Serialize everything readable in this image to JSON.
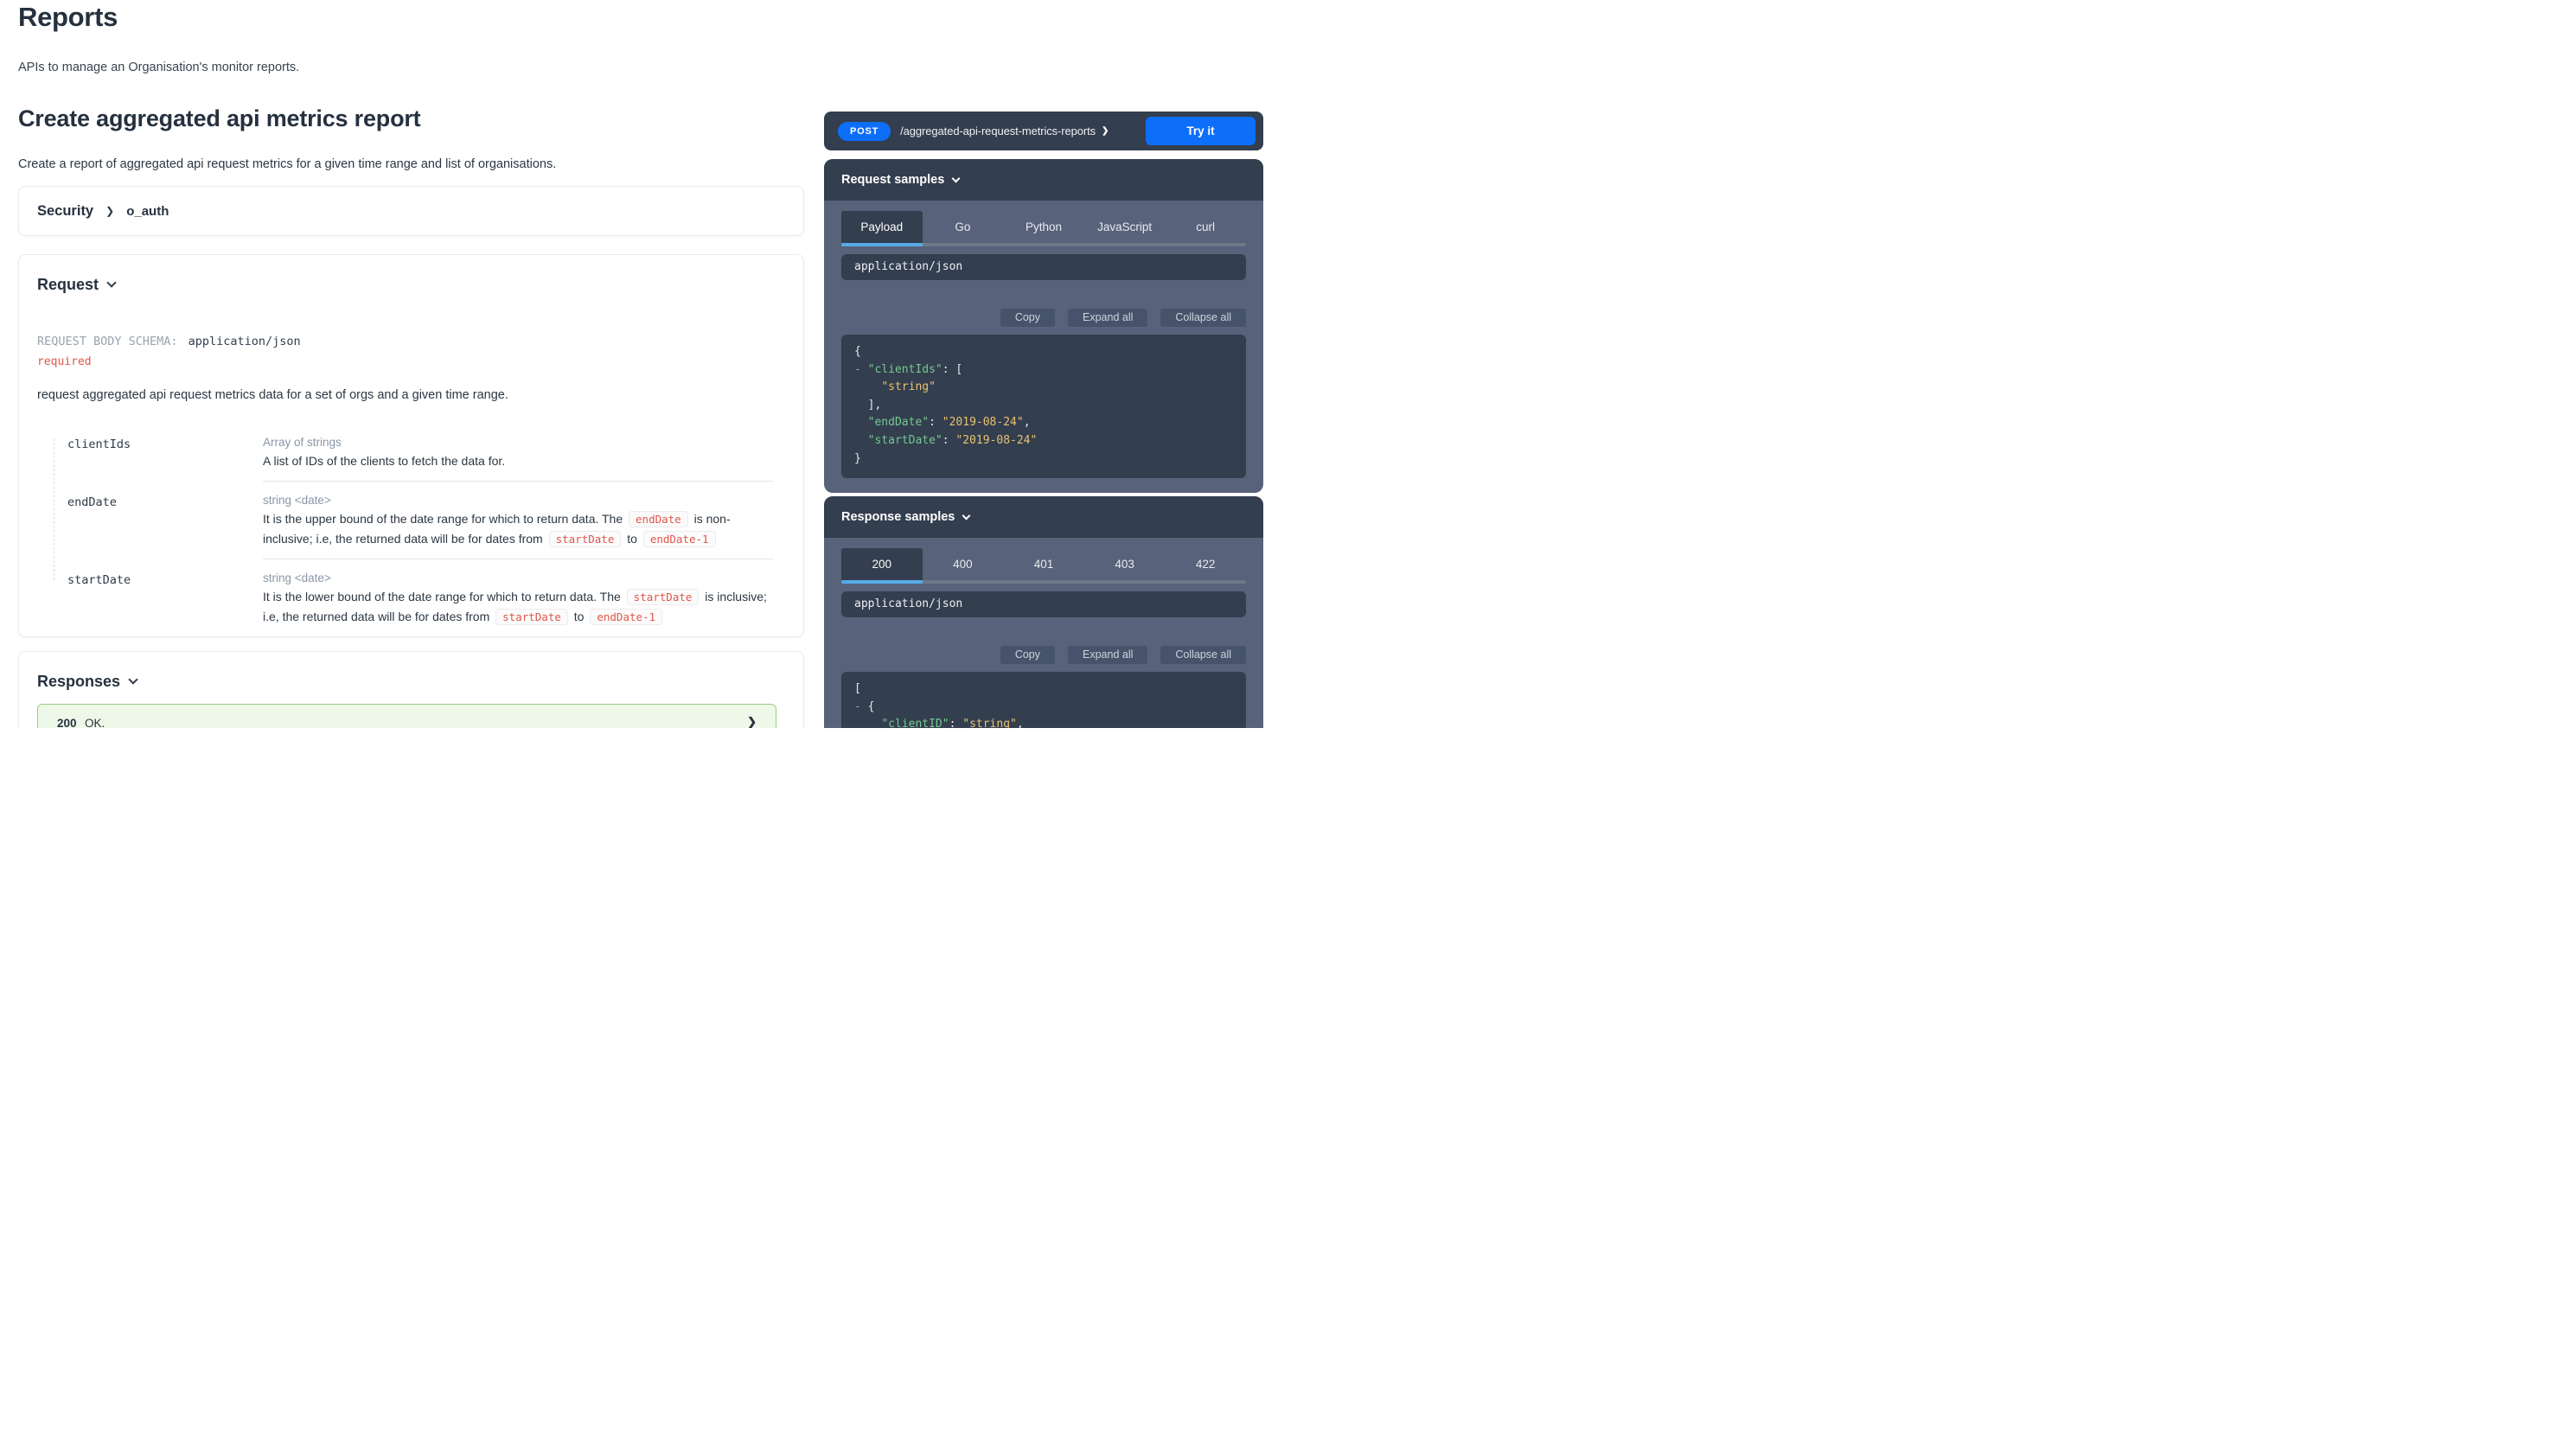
{
  "page": {
    "title": "Reports",
    "subtitle": "APIs to manage an Organisation's monitor reports."
  },
  "operation": {
    "title": "Create aggregated api metrics report",
    "description": "Create a report of aggregated api request metrics for a given time range and list of organisations."
  },
  "security": {
    "label": "Security",
    "value": "o_auth"
  },
  "request": {
    "section_label": "Request",
    "schema_label": "REQUEST BODY SCHEMA:",
    "content_type": "application/json",
    "required_label": "required",
    "description": "request aggregated api request metrics data for a set of orgs and a given time range.",
    "fields": [
      {
        "name": "clientIds",
        "type": "Array of strings",
        "desc": [
          {
            "t": "text",
            "v": "A list of IDs of the clients to fetch the data for."
          }
        ]
      },
      {
        "name": "endDate",
        "type": "string <date>",
        "desc": [
          {
            "t": "text",
            "v": "It is the upper bound of the date range for which to return data. The "
          },
          {
            "t": "code",
            "v": "endDate"
          },
          {
            "t": "text",
            "v": " is non-inclusive; i.e, the returned data will be for dates from "
          },
          {
            "t": "code",
            "v": "startDate"
          },
          {
            "t": "text",
            "v": " to "
          },
          {
            "t": "code",
            "v": "endDate-1"
          }
        ]
      },
      {
        "name": "startDate",
        "type": "string <date>",
        "desc": [
          {
            "t": "text",
            "v": "It is the lower bound of the date range for which to return data. The "
          },
          {
            "t": "code",
            "v": "startDate"
          },
          {
            "t": "text",
            "v": " is inclusive; i.e, the returned data will be for dates from "
          },
          {
            "t": "code",
            "v": "startDate"
          },
          {
            "t": "text",
            "v": " to "
          },
          {
            "t": "code",
            "v": "endDate-1"
          }
        ]
      }
    ]
  },
  "responses": {
    "section_label": "Responses",
    "items": [
      {
        "code": "200",
        "description": "OK."
      }
    ]
  },
  "endpoint": {
    "method": "POST",
    "path": "/aggregated-api-request-metrics-reports",
    "try_it_label": "Try it"
  },
  "sample_actions": {
    "copy": "Copy",
    "expand": "Expand all",
    "collapse": "Collapse all"
  },
  "request_samples": {
    "title": "Request samples",
    "tabs": [
      "Payload",
      "Go",
      "Python",
      "JavaScript",
      "curl"
    ],
    "active_tab": "Payload",
    "content_type": "application/json",
    "code": [
      [
        {
          "c": "p",
          "v": "{"
        }
      ],
      [
        {
          "c": "d",
          "v": "- "
        },
        {
          "c": "k",
          "v": "\"clientIds\""
        },
        {
          "c": "p",
          "v": ": ["
        }
      ],
      [
        {
          "c": "p",
          "v": "    "
        },
        {
          "c": "s",
          "v": "\"string\""
        }
      ],
      [
        {
          "c": "p",
          "v": "  ],"
        }
      ],
      [
        {
          "c": "p",
          "v": "  "
        },
        {
          "c": "k",
          "v": "\"endDate\""
        },
        {
          "c": "p",
          "v": ": "
        },
        {
          "c": "s",
          "v": "\"2019-08-24\""
        },
        {
          "c": "p",
          "v": ","
        }
      ],
      [
        {
          "c": "p",
          "v": "  "
        },
        {
          "c": "k",
          "v": "\"startDate\""
        },
        {
          "c": "p",
          "v": ": "
        },
        {
          "c": "s",
          "v": "\"2019-08-24\""
        }
      ],
      [
        {
          "c": "p",
          "v": "}"
        }
      ]
    ]
  },
  "response_samples": {
    "title": "Response samples",
    "tabs": [
      "200",
      "400",
      "401",
      "403",
      "422"
    ],
    "active_tab": "200",
    "content_type": "application/json",
    "code": [
      [
        {
          "c": "p",
          "v": "["
        }
      ],
      [
        {
          "c": "d",
          "v": "- "
        },
        {
          "c": "p",
          "v": "{"
        }
      ],
      [
        {
          "c": "p",
          "v": "    "
        },
        {
          "c": "k",
          "v": "\"clientID\""
        },
        {
          "c": "p",
          "v": ": "
        },
        {
          "c": "s",
          "v": "\"string\""
        },
        {
          "c": "p",
          "v": ","
        }
      ]
    ]
  },
  "colors": {
    "accent_blue": "#0d6efa",
    "tab_underline_blue": "#55abe8",
    "panel_dark": "#333e4e",
    "panel_body": "#58627a",
    "success_border": "#9ccc84",
    "success_bg": "#eef8e9",
    "required_red": "#e0564a",
    "code_key_green": "#76c893",
    "code_string_amber": "#e9c272"
  }
}
